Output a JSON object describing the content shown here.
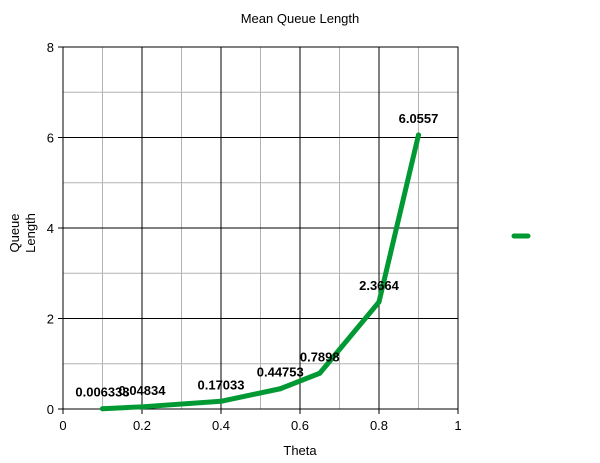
{
  "chart_data": {
    "type": "line",
    "title": "Mean Queue Length",
    "xlabel": "Theta",
    "ylabel": "Queue Length",
    "ylabel_lines": [
      "Queue",
      "Length"
    ],
    "xlim": [
      0,
      1
    ],
    "ylim": [
      0,
      8
    ],
    "x_major_ticks": [
      0,
      0.2,
      0.4,
      0.6,
      0.8,
      1
    ],
    "x_major_tick_labels": [
      "0",
      "0.2",
      "0.4",
      "0.6",
      "0.8",
      "1"
    ],
    "x_minor_ticks": [
      0.1,
      0.3,
      0.5,
      0.7,
      0.9
    ],
    "y_major_ticks": [
      0,
      2,
      4,
      6,
      8
    ],
    "y_major_tick_labels": [
      "0",
      "2",
      "4",
      "6",
      "8"
    ],
    "y_minor_ticks": [
      1,
      3,
      5,
      7
    ],
    "grid": true,
    "legend_position": "right",
    "series": [
      {
        "color": "#009933",
        "x": [
          0.1,
          0.2,
          0.4,
          0.55,
          0.65,
          0.8,
          0.9
        ],
        "y": [
          0.006333,
          0.04834,
          0.17033,
          0.44753,
          0.7898,
          2.3664,
          6.0557
        ],
        "data_labels": [
          "0.006333",
          "0.04834",
          "0.17033",
          "0.44753",
          "0.7898",
          "2.3664",
          "6.0557"
        ]
      }
    ]
  }
}
